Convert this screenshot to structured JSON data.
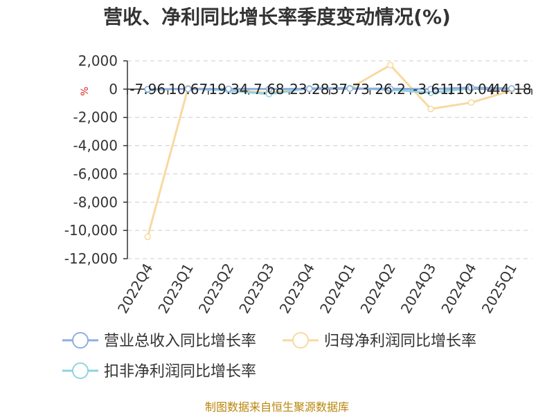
{
  "chart_data": {
    "type": "line",
    "title": "营收、净利同比增长率季度变动情况(%)",
    "unit": "%",
    "categories": [
      "2022Q4",
      "2023Q1",
      "2023Q2",
      "2023Q3",
      "2023Q4",
      "2024Q1",
      "2024Q2",
      "2024Q3",
      "2024Q4",
      "2025Q1"
    ],
    "ylim": [
      -12000,
      2000
    ],
    "yticks": [
      2000,
      0,
      -2000,
      -4000,
      -6000,
      -8000,
      -10000,
      -12000
    ],
    "ytick_labels": [
      "2,000",
      "0",
      "-2,000",
      "-4,000",
      "-6,000",
      "-8,000",
      "-10,000",
      "-12,000"
    ],
    "grid": true,
    "legend_position": "bottom",
    "series": [
      {
        "name": "营业总收入同比增长率",
        "color": "#8eaee0",
        "values": [
          -7.96,
          10.67,
          19.34,
          7.68,
          23.28,
          37.73,
          26.2,
          -3.61,
          110.04,
          44.18
        ],
        "labels": [
          "-7.96",
          "10.67",
          "19.34",
          "7.68",
          "23.28",
          "37.73",
          "26.2",
          "-3.61",
          "110.04",
          "44.18"
        ]
      },
      {
        "name": "归母净利润同比增长率",
        "color": "#f8d9a0",
        "values": [
          -10450,
          80,
          -50,
          -250,
          50,
          50,
          1700,
          -1400,
          -950,
          -100
        ]
      },
      {
        "name": "扣非净利润同比增长率",
        "color": "#8fd3e0",
        "values": [
          -50,
          30,
          -100,
          -350,
          50,
          80,
          -50,
          -250,
          50,
          50
        ]
      }
    ]
  },
  "source": "制图数据来自恒生聚源数据库"
}
